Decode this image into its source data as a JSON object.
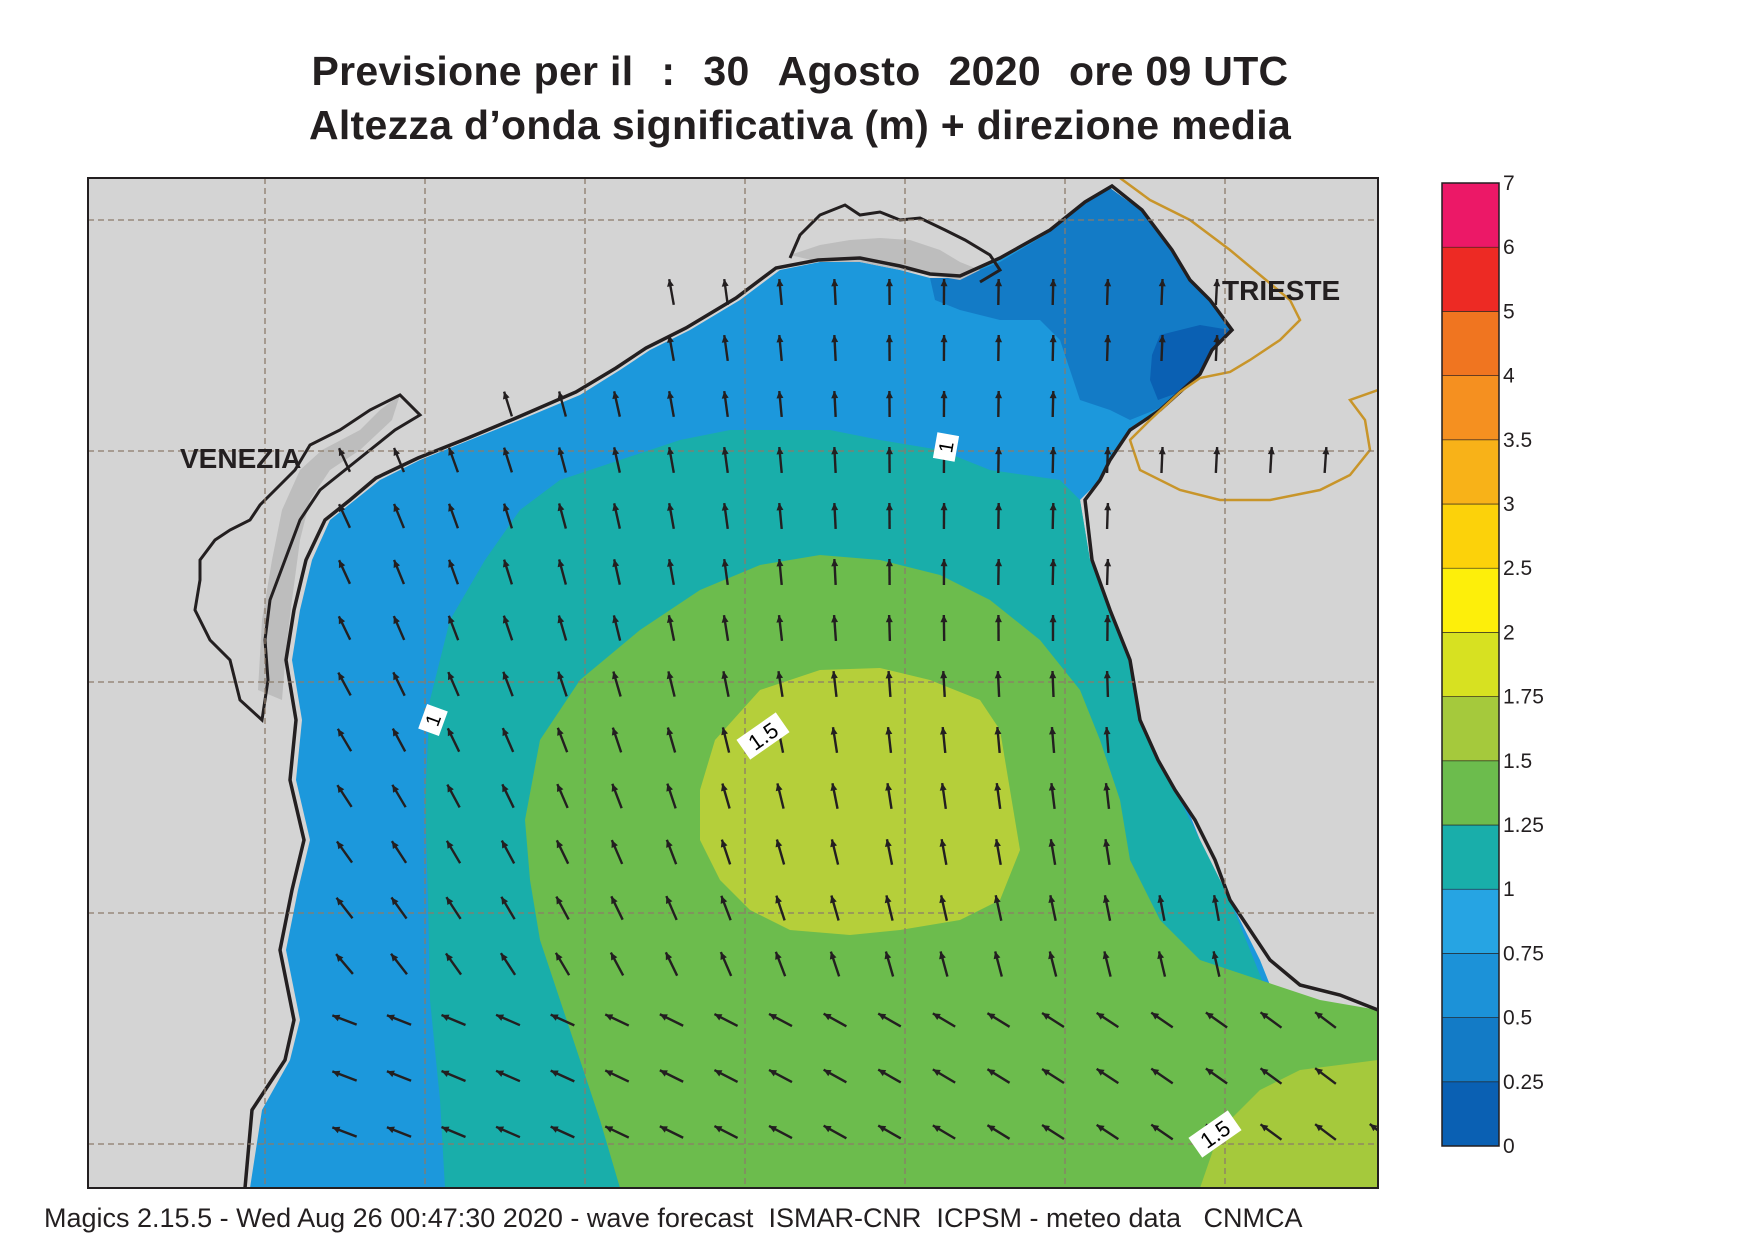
{
  "title": {
    "line1_parts": [
      "Previsione per il",
      ":",
      "30",
      "Agosto",
      "2020",
      "ore 09 UTC"
    ],
    "line2": "Altezza d’onda significativa (m) + direzione media"
  },
  "map": {
    "cities": [
      {
        "name": "VENEZIA"
      },
      {
        "name": "TRIESTE"
      }
    ],
    "contour_labels": [
      "1",
      "1",
      "1.5",
      "1.5"
    ],
    "land_color": "#d4d4d4",
    "coast_color": "#231f20",
    "border_color": "#c8952a",
    "grid_color": "#8c7b6a"
  },
  "legend": {
    "levels": [
      "0",
      "0.25",
      "0.5",
      "0.75",
      "1",
      "1.25",
      "1.5",
      "1.75",
      "2",
      "2.5",
      "3",
      "3.5",
      "4",
      "5",
      "6",
      "7"
    ],
    "colors": [
      "#0a60b3",
      "#137bc6",
      "#1c92d8",
      "#26a4e3",
      "#19aeaa",
      "#6cbc4d",
      "#a5c93c",
      "#d7e121",
      "#fdef0a",
      "#fcd20a",
      "#f8b218",
      "#f59020",
      "#f07520",
      "#ed2a24",
      "#ec1867"
    ]
  },
  "footer": "Magics 2.15.5 - Wed Aug 26 00:47:30 2020 - wave forecast  ISMAR-CNR  ICPSM - meteo data   CNMCA"
}
